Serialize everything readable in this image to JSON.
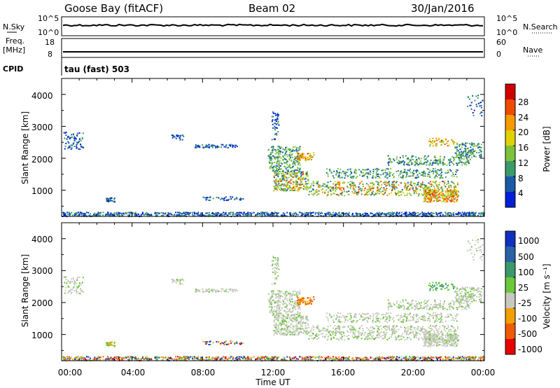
{
  "header": {
    "station": "Goose Bay (fitACF)",
    "beam": "Beam 02",
    "date": "30/Jan/2016"
  },
  "status_panels": {
    "nsky_label": "N.Sky",
    "nsearch_label": "N.Search",
    "nsky_ticks": [
      "10^5",
      "10^0"
    ],
    "nsearch_ticks": [
      "10^5",
      "10^0"
    ],
    "freq_label_1": "Freq.",
    "freq_label_2": "[MHz]",
    "freq_ticks": [
      "18",
      "8"
    ],
    "nave_label": "Nave",
    "nave_ticks": [
      "60",
      "0"
    ],
    "cpid_label": "CPID",
    "cpid_value": "tau (fast) 503"
  },
  "chart_data": [
    {
      "type": "heatmap",
      "ylabel": "Slant Range [km]",
      "ylim": [
        180,
        4500
      ],
      "yticks": [
        "1000",
        "2000",
        "3000",
        "4000"
      ],
      "colorbar_label": "Power [dB]",
      "colorbar_ticks": [
        "28",
        "24",
        "20",
        "16",
        "12",
        "8",
        "4"
      ],
      "colorbar_colors": [
        "#d10000",
        "#f04a00",
        "#f59a00",
        "#e0d200",
        "#7cc23d",
        "#3a9a6a",
        "#1a5aa8",
        "#0020d8"
      ],
      "xlim": [
        0,
        24
      ],
      "xticks": [
        "00:00",
        "04:00",
        "08:00",
        "12:00",
        "16:00",
        "20:00",
        "00:00"
      ]
    },
    {
      "type": "heatmap",
      "ylabel": "Slant Range [km]",
      "ylim": [
        180,
        4500
      ],
      "yticks": [
        "1000",
        "2000",
        "3000",
        "4000"
      ],
      "colorbar_label": "Velocity [m s⁻¹]",
      "colorbar_ticks": [
        "1000",
        "500",
        "100",
        "25",
        "-25",
        "-100",
        "-500",
        "-1000"
      ],
      "colorbar_colors": [
        "#1030c0",
        "#2a62a8",
        "#3a9a6a",
        "#6cc83a",
        "#c8c8c0",
        "#f0a000",
        "#f05a00",
        "#e80000"
      ],
      "xlim": [
        0,
        24
      ],
      "xticks": [
        "00:00",
        "04:00",
        "08:00",
        "12:00",
        "16:00",
        "20:00",
        "00:00"
      ],
      "xlabel": "Time UT"
    }
  ]
}
